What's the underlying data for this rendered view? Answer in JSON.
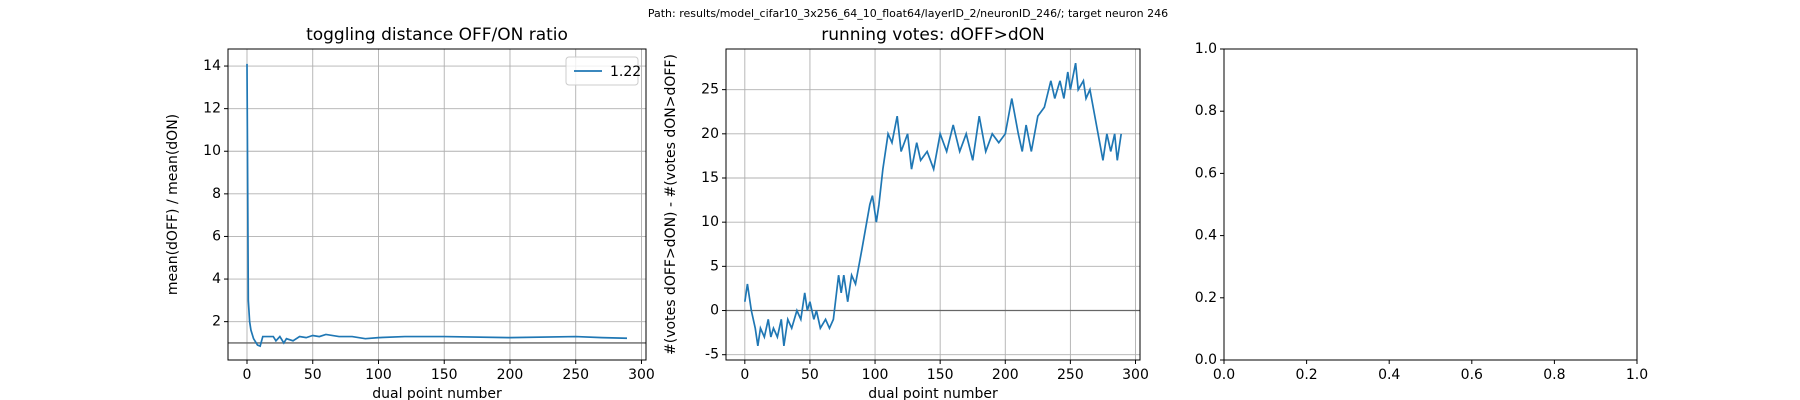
{
  "figure_title": "Path: results/model_cifar10_3x256_64_10_float64/layerID_2/neuronID_246/; target neuron 246",
  "chart_data": [
    {
      "type": "line",
      "title": "toggling distance OFF/ON ratio",
      "xlabel": "dual point number",
      "ylabel": "mean(dOFF) / mean(dON)",
      "x": [
        0,
        1,
        2,
        3,
        5,
        8,
        10,
        12,
        15,
        20,
        22,
        25,
        28,
        30,
        35,
        40,
        45,
        50,
        55,
        60,
        70,
        80,
        90,
        100,
        120,
        150,
        200,
        250,
        270,
        289
      ],
      "series": [
        {
          "name": "1.22",
          "color": "#1f77b4",
          "values": [
            14.1,
            3,
            2,
            1.6,
            1.2,
            0.9,
            0.85,
            1.3,
            1.3,
            1.3,
            1.1,
            1.3,
            1.0,
            1.2,
            1.1,
            1.3,
            1.25,
            1.35,
            1.3,
            1.4,
            1.3,
            1.3,
            1.2,
            1.25,
            1.3,
            1.3,
            1.25,
            1.3,
            1.25,
            1.22
          ]
        }
      ],
      "hline": 1,
      "xlim": [
        -14.45,
        303.45
      ],
      "ylim": [
        0.2,
        14.8
      ],
      "xticks": [
        0,
        50,
        100,
        150,
        200,
        250,
        300
      ],
      "yticks": [
        2,
        4,
        6,
        8,
        10,
        12,
        14
      ],
      "grid": true,
      "legend": "upper right"
    },
    {
      "type": "line",
      "title": "running votes: dOFF>dON",
      "xlabel": "dual point number",
      "ylabel": "#(votes dOFF>dON) - #(votes dON>dOFF)",
      "x": [
        0,
        2,
        5,
        8,
        10,
        12,
        15,
        18,
        20,
        22,
        25,
        28,
        30,
        33,
        36,
        40,
        43,
        46,
        48,
        50,
        53,
        55,
        58,
        62,
        65,
        68,
        72,
        74,
        76,
        79,
        82,
        85,
        90,
        96,
        98,
        101,
        103,
        106,
        110,
        113,
        117,
        120,
        125,
        128,
        132,
        135,
        140,
        145,
        150,
        155,
        160,
        165,
        170,
        175,
        180,
        185,
        190,
        195,
        200,
        205,
        210,
        213,
        216,
        220,
        225,
        230,
        235,
        238,
        242,
        245,
        248,
        250,
        254,
        256,
        260,
        262,
        265,
        270,
        275,
        278,
        281,
        284,
        286,
        289
      ],
      "series": [
        {
          "name": null,
          "color": "#1f77b4",
          "values": [
            1,
            3,
            0,
            -2,
            -4,
            -2,
            -3,
            -1,
            -3,
            -2,
            -3,
            -1,
            -4,
            -1,
            -2,
            0,
            -1,
            2,
            0,
            1,
            -1,
            0,
            -2,
            -1,
            -2,
            -1,
            4,
            2,
            4,
            1,
            4,
            3,
            7,
            12,
            13,
            10,
            12,
            16,
            20,
            19,
            22,
            18,
            20,
            16,
            19,
            17,
            18,
            16,
            20,
            18,
            21,
            18,
            20,
            17,
            22,
            18,
            20,
            19,
            20,
            24,
            20,
            18,
            21,
            18,
            22,
            23,
            26,
            24,
            26,
            24,
            27,
            25,
            28,
            25,
            26,
            24,
            25,
            21,
            17,
            20,
            18,
            20,
            17,
            20
          ]
        }
      ],
      "hline": 0,
      "xlim": [
        -14.45,
        303.45
      ],
      "ylim": [
        -5.6,
        29.6
      ],
      "xticks": [
        0,
        50,
        100,
        150,
        200,
        250,
        300
      ],
      "yticks": [
        -5,
        0,
        5,
        10,
        15,
        20,
        25
      ],
      "grid": true
    },
    {
      "type": "line",
      "series": [],
      "xlim": [
        0,
        1
      ],
      "ylim": [
        0,
        1
      ],
      "xticks": [
        {
          "value": 0,
          "label": "0.0"
        },
        {
          "value": 0.2,
          "label": "0.2"
        },
        {
          "value": 0.4,
          "label": "0.4"
        },
        {
          "value": 0.6,
          "label": "0.6"
        },
        {
          "value": 0.8,
          "label": "0.8"
        },
        {
          "value": 1,
          "label": "1.0"
        }
      ],
      "yticks": [
        {
          "value": 0,
          "label": "0.0"
        },
        {
          "value": 0.2,
          "label": "0.2"
        },
        {
          "value": 0.4,
          "label": "0.4"
        },
        {
          "value": 0.6,
          "label": "0.6"
        },
        {
          "value": 0.8,
          "label": "0.8"
        },
        {
          "value": 1,
          "label": "1.0"
        }
      ],
      "grid": false
    }
  ]
}
